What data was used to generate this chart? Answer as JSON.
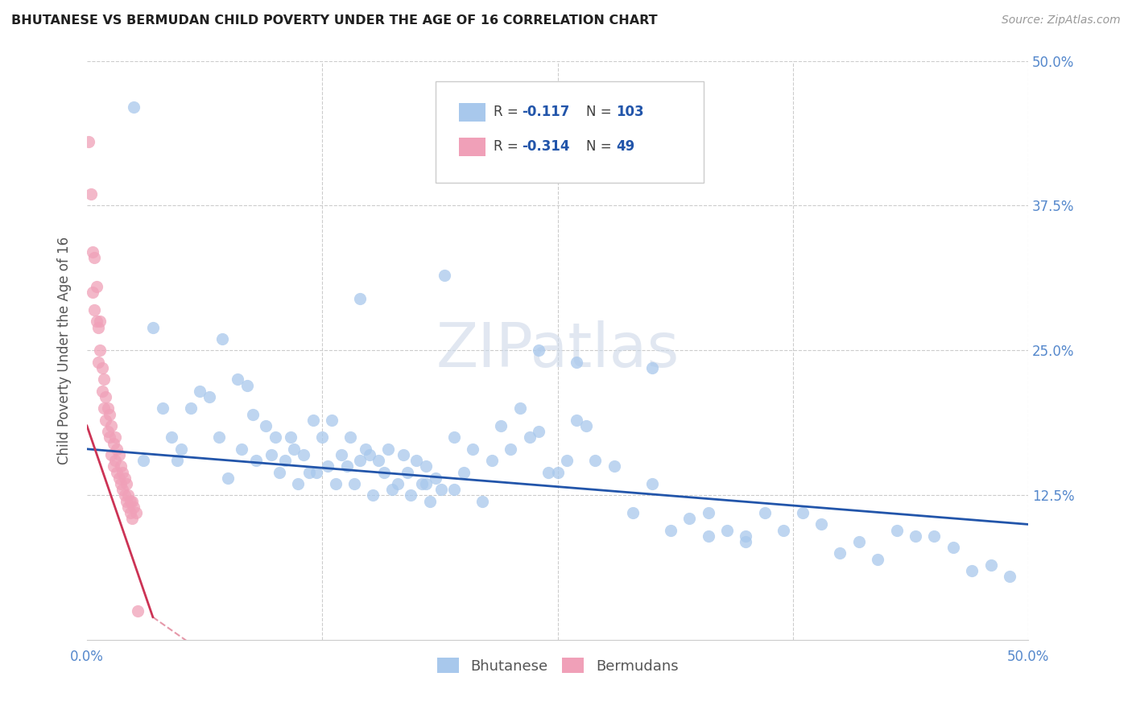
{
  "title": "BHUTANESE VS BERMUDAN CHILD POVERTY UNDER THE AGE OF 16 CORRELATION CHART",
  "source": "Source: ZipAtlas.com",
  "ylabel": "Child Poverty Under the Age of 16",
  "xlim": [
    0.0,
    0.5
  ],
  "ylim": [
    0.0,
    0.5
  ],
  "blue_color": "#A8C8EC",
  "pink_color": "#F0A0B8",
  "blue_line_color": "#2255AA",
  "pink_line_color": "#CC3355",
  "title_color": "#202020",
  "axis_tick_color": "#5588CC",
  "background_color": "#FFFFFF",
  "watermark": "ZIPatlas",
  "legend_r1_val": "-0.117",
  "legend_n1_val": "103",
  "legend_r2_val": "-0.314",
  "legend_n2_val": "49",
  "bhutanese_x": [
    0.025,
    0.03,
    0.035,
    0.04,
    0.045,
    0.048,
    0.05,
    0.055,
    0.06,
    0.065,
    0.07,
    0.072,
    0.075,
    0.08,
    0.082,
    0.085,
    0.088,
    0.09,
    0.095,
    0.098,
    0.1,
    0.102,
    0.105,
    0.108,
    0.11,
    0.112,
    0.115,
    0.118,
    0.12,
    0.122,
    0.125,
    0.128,
    0.13,
    0.132,
    0.135,
    0.138,
    0.14,
    0.142,
    0.145,
    0.148,
    0.15,
    0.152,
    0.155,
    0.158,
    0.16,
    0.162,
    0.165,
    0.168,
    0.17,
    0.172,
    0.175,
    0.178,
    0.18,
    0.182,
    0.185,
    0.188,
    0.19,
    0.195,
    0.2,
    0.205,
    0.21,
    0.215,
    0.22,
    0.225,
    0.23,
    0.235,
    0.24,
    0.245,
    0.25,
    0.255,
    0.26,
    0.265,
    0.27,
    0.28,
    0.29,
    0.3,
    0.31,
    0.32,
    0.33,
    0.34,
    0.35,
    0.36,
    0.37,
    0.38,
    0.39,
    0.4,
    0.41,
    0.42,
    0.43,
    0.44,
    0.45,
    0.46,
    0.47,
    0.48,
    0.49,
    0.3,
    0.35,
    0.24,
    0.26,
    0.33,
    0.195,
    0.145,
    0.18
  ],
  "bhutanese_y": [
    0.46,
    0.155,
    0.27,
    0.2,
    0.175,
    0.155,
    0.165,
    0.2,
    0.215,
    0.21,
    0.175,
    0.26,
    0.14,
    0.225,
    0.165,
    0.22,
    0.195,
    0.155,
    0.185,
    0.16,
    0.175,
    0.145,
    0.155,
    0.175,
    0.165,
    0.135,
    0.16,
    0.145,
    0.19,
    0.145,
    0.175,
    0.15,
    0.19,
    0.135,
    0.16,
    0.15,
    0.175,
    0.135,
    0.155,
    0.165,
    0.16,
    0.125,
    0.155,
    0.145,
    0.165,
    0.13,
    0.135,
    0.16,
    0.145,
    0.125,
    0.155,
    0.135,
    0.15,
    0.12,
    0.14,
    0.13,
    0.315,
    0.175,
    0.145,
    0.165,
    0.12,
    0.155,
    0.185,
    0.165,
    0.2,
    0.175,
    0.18,
    0.145,
    0.145,
    0.155,
    0.19,
    0.185,
    0.155,
    0.15,
    0.11,
    0.135,
    0.095,
    0.105,
    0.11,
    0.095,
    0.09,
    0.11,
    0.095,
    0.11,
    0.1,
    0.075,
    0.085,
    0.07,
    0.095,
    0.09,
    0.09,
    0.08,
    0.06,
    0.065,
    0.055,
    0.235,
    0.085,
    0.25,
    0.24,
    0.09,
    0.13,
    0.295,
    0.135
  ],
  "bermudans_x": [
    0.001,
    0.002,
    0.003,
    0.003,
    0.004,
    0.004,
    0.005,
    0.005,
    0.006,
    0.006,
    0.007,
    0.007,
    0.008,
    0.008,
    0.009,
    0.009,
    0.01,
    0.01,
    0.011,
    0.011,
    0.012,
    0.012,
    0.013,
    0.013,
    0.014,
    0.014,
    0.015,
    0.015,
    0.016,
    0.016,
    0.017,
    0.017,
    0.018,
    0.018,
    0.019,
    0.019,
    0.02,
    0.02,
    0.021,
    0.021,
    0.022,
    0.022,
    0.023,
    0.023,
    0.024,
    0.024,
    0.025,
    0.026,
    0.027
  ],
  "bermudans_y": [
    0.43,
    0.385,
    0.335,
    0.3,
    0.285,
    0.33,
    0.275,
    0.305,
    0.27,
    0.24,
    0.25,
    0.275,
    0.235,
    0.215,
    0.2,
    0.225,
    0.19,
    0.21,
    0.18,
    0.2,
    0.175,
    0.195,
    0.16,
    0.185,
    0.17,
    0.15,
    0.155,
    0.175,
    0.145,
    0.165,
    0.14,
    0.16,
    0.135,
    0.15,
    0.13,
    0.145,
    0.125,
    0.14,
    0.12,
    0.135,
    0.115,
    0.125,
    0.11,
    0.12,
    0.105,
    0.12,
    0.115,
    0.11,
    0.025
  ],
  "bhutanese_trend_x": [
    0.0,
    0.5
  ],
  "bhutanese_trend_y": [
    0.165,
    0.1
  ],
  "bermudans_trend_x": [
    0.0,
    0.035
  ],
  "bermudans_trend_y": [
    0.185,
    0.02
  ]
}
